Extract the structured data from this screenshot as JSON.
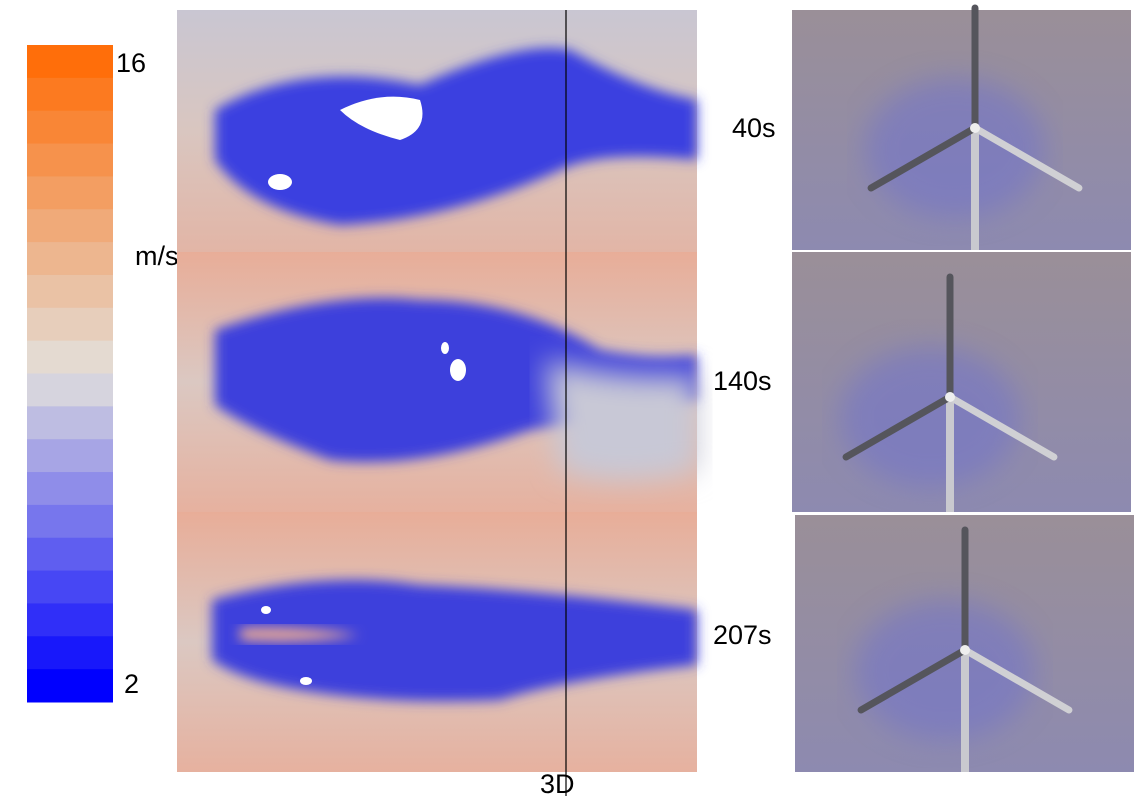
{
  "colorbar": {
    "max": "16",
    "unit": "m/s",
    "min": "2"
  },
  "panels": [
    {
      "time": "40s"
    },
    {
      "time": "140s"
    },
    {
      "time": "207s"
    }
  ],
  "distance_label": "3D"
}
